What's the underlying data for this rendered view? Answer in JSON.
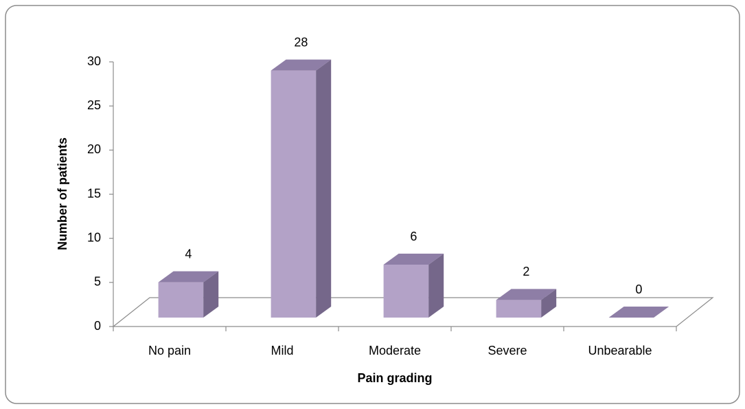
{
  "chart_data": {
    "type": "bar3d",
    "categories": [
      "No pain",
      "Mild",
      "Moderate",
      "Severe",
      "Unbearable"
    ],
    "values": [
      4,
      28,
      6,
      2,
      0
    ],
    "color": "#b3a2c7",
    "xlabel": "Pain grading",
    "ylabel": "Number of patients",
    "ylim": [
      0,
      30
    ],
    "yticks": [
      0,
      5,
      10,
      15,
      20,
      25,
      30
    ]
  }
}
